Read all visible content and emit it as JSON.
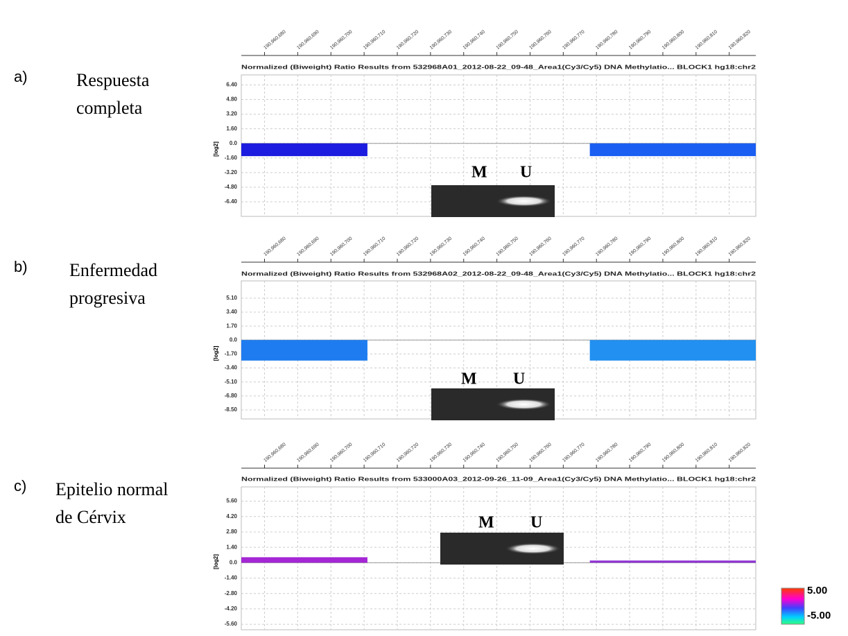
{
  "chart_data": [
    {
      "type": "segment",
      "panel_label": "a)",
      "description": [
        "Respuesta",
        "completa"
      ],
      "title": "Normalized (Biweight) Ratio Results from 532968A01_2012-08-22_09-48_Area1(Cy3/Cy5) DNA Methylatio...   BLOCK1 hg18:chr2",
      "y_label": "[log2]",
      "xlim": [
        190960673,
        190960828
      ],
      "xticks": [
        {
          "value": 190960680,
          "label": "190,960,680"
        },
        {
          "value": 190960690,
          "label": "190,960,690"
        },
        {
          "value": 190960700,
          "label": "190,960,700"
        },
        {
          "value": 190960710,
          "label": "190,960,710"
        },
        {
          "value": 190960720,
          "label": "190,960,720"
        },
        {
          "value": 190960730,
          "label": "190,960,730"
        },
        {
          "value": 190960740,
          "label": "190,960,740"
        },
        {
          "value": 190960750,
          "label": "190,960,750"
        },
        {
          "value": 190960760,
          "label": "190,960,760"
        },
        {
          "value": 190960770,
          "label": "190,960,770"
        },
        {
          "value": 190960780,
          "label": "190,960,780"
        },
        {
          "value": 190960790,
          "label": "190,960,790"
        },
        {
          "value": 190960800,
          "label": "190,960,800"
        },
        {
          "value": 190960810,
          "label": "190,960,810"
        },
        {
          "value": 190960820,
          "label": "190,960,820"
        }
      ],
      "ylim": [
        -8,
        7.5
      ],
      "yticks": [
        {
          "value": 6.4,
          "label": "6.40"
        },
        {
          "value": 4.8,
          "label": "4.80"
        },
        {
          "value": 3.2,
          "label": "3.20"
        },
        {
          "value": 1.6,
          "label": "1.60"
        },
        {
          "value": 0,
          "label": "0.0"
        },
        {
          "value": -1.6,
          "label": "-1.60"
        },
        {
          "value": -3.2,
          "label": "-3.20"
        },
        {
          "value": -4.8,
          "label": "-4.80"
        },
        {
          "value": -6.4,
          "label": "-6.40"
        }
      ],
      "grid": true,
      "segments": [
        {
          "x": [
            190960673,
            190960711
          ],
          "value": -1.4,
          "color": "#1c1ce0"
        },
        {
          "x": [
            190960778,
            190960828
          ],
          "value": -1.4,
          "color": "#1a5ef2"
        }
      ],
      "gel_lanes": [
        "M",
        "U"
      ]
    },
    {
      "type": "segment",
      "panel_label": "b)",
      "description": [
        "Enfermedad",
        "progresiva"
      ],
      "title": "Normalized (Biweight) Ratio Results from 532968A02_2012-08-22_09-48_Area1(Cy3/Cy5) DNA Methylatio...   BLOCK1 hg18:chr2",
      "y_label": "[log2]",
      "xlim": [
        190960673,
        190960828
      ],
      "xticks": [
        {
          "value": 190960680,
          "label": "190,960,680"
        },
        {
          "value": 190960690,
          "label": "190,960,690"
        },
        {
          "value": 190960700,
          "label": "190,960,700"
        },
        {
          "value": 190960710,
          "label": "190,960,710"
        },
        {
          "value": 190960720,
          "label": "190,960,720"
        },
        {
          "value": 190960730,
          "label": "190,960,730"
        },
        {
          "value": 190960740,
          "label": "190,960,740"
        },
        {
          "value": 190960750,
          "label": "190,960,750"
        },
        {
          "value": 190960760,
          "label": "190,960,760"
        },
        {
          "value": 190960770,
          "label": "190,960,770"
        },
        {
          "value": 190960780,
          "label": "190,960,780"
        },
        {
          "value": 190960790,
          "label": "190,960,790"
        },
        {
          "value": 190960800,
          "label": "190,960,800"
        },
        {
          "value": 190960810,
          "label": "190,960,810"
        },
        {
          "value": 190960820,
          "label": "190,960,820"
        }
      ],
      "ylim": [
        -9.6,
        7.2
      ],
      "yticks": [
        {
          "value": 5.1,
          "label": "5.10"
        },
        {
          "value": 3.4,
          "label": "3.40"
        },
        {
          "value": 1.7,
          "label": "1.70"
        },
        {
          "value": 0,
          "label": "0.0"
        },
        {
          "value": -1.7,
          "label": "-1.70"
        },
        {
          "value": -3.4,
          "label": "-3.40"
        },
        {
          "value": -5.1,
          "label": "-5.10"
        },
        {
          "value": -6.8,
          "label": "-6.80"
        },
        {
          "value": -8.5,
          "label": "-8.50"
        }
      ],
      "grid": true,
      "segments": [
        {
          "x": [
            190960673,
            190960711
          ],
          "value": -2.5,
          "color": "#1e7cf0"
        },
        {
          "x": [
            190960778,
            190960828
          ],
          "value": -2.5,
          "color": "#2290f0"
        }
      ],
      "gel_lanes": [
        "M",
        "U"
      ]
    },
    {
      "type": "segment",
      "panel_label": "c)",
      "description": [
        "Epitelio normal",
        "de Cérvix"
      ],
      "title": "Normalized (Biweight) Ratio Results from 533000A03_2012-09-26_11-09_Area1(Cy3/Cy5) DNA Methylatio...   BLOCK1 hg18:chr2",
      "y_label": "[log2]",
      "xlim": [
        190960673,
        190960828
      ],
      "xticks": [
        {
          "value": 190960680,
          "label": "190,960,680"
        },
        {
          "value": 190960690,
          "label": "190,960,690"
        },
        {
          "value": 190960700,
          "label": "190,960,700"
        },
        {
          "value": 190960710,
          "label": "190,960,710"
        },
        {
          "value": 190960720,
          "label": "190,960,720"
        },
        {
          "value": 190960730,
          "label": "190,960,730"
        },
        {
          "value": 190960740,
          "label": "190,960,740"
        },
        {
          "value": 190960750,
          "label": "190,960,750"
        },
        {
          "value": 190960760,
          "label": "190,960,760"
        },
        {
          "value": 190960770,
          "label": "190,960,770"
        },
        {
          "value": 190960780,
          "label": "190,960,780"
        },
        {
          "value": 190960790,
          "label": "190,960,790"
        },
        {
          "value": 190960800,
          "label": "190,960,800"
        },
        {
          "value": 190960810,
          "label": "190,960,810"
        },
        {
          "value": 190960820,
          "label": "190,960,820"
        }
      ],
      "ylim": [
        -6.1,
        6.9
      ],
      "yticks": [
        {
          "value": 5.6,
          "label": "5.60"
        },
        {
          "value": 4.2,
          "label": "4.20"
        },
        {
          "value": 2.8,
          "label": "2.80"
        },
        {
          "value": 1.4,
          "label": "1.40"
        },
        {
          "value": 0,
          "label": "0.0"
        },
        {
          "value": -1.4,
          "label": "-1.40"
        },
        {
          "value": -2.8,
          "label": "-2.80"
        },
        {
          "value": -4.2,
          "label": "-4.20"
        },
        {
          "value": -5.6,
          "label": "-5.60"
        }
      ],
      "grid": true,
      "segments": [
        {
          "x": [
            190960673,
            190960711
          ],
          "value": 0.5,
          "color": "#a426d4"
        },
        {
          "x": [
            190960778,
            190960828
          ],
          "value": 0.2,
          "color": "#9033d4"
        }
      ],
      "gel_lanes": [
        "M",
        "U"
      ]
    }
  ],
  "colorbar": {
    "max": {
      "value": 5,
      "label": "5.00"
    },
    "min": {
      "value": -5,
      "label": "-5.00"
    }
  }
}
